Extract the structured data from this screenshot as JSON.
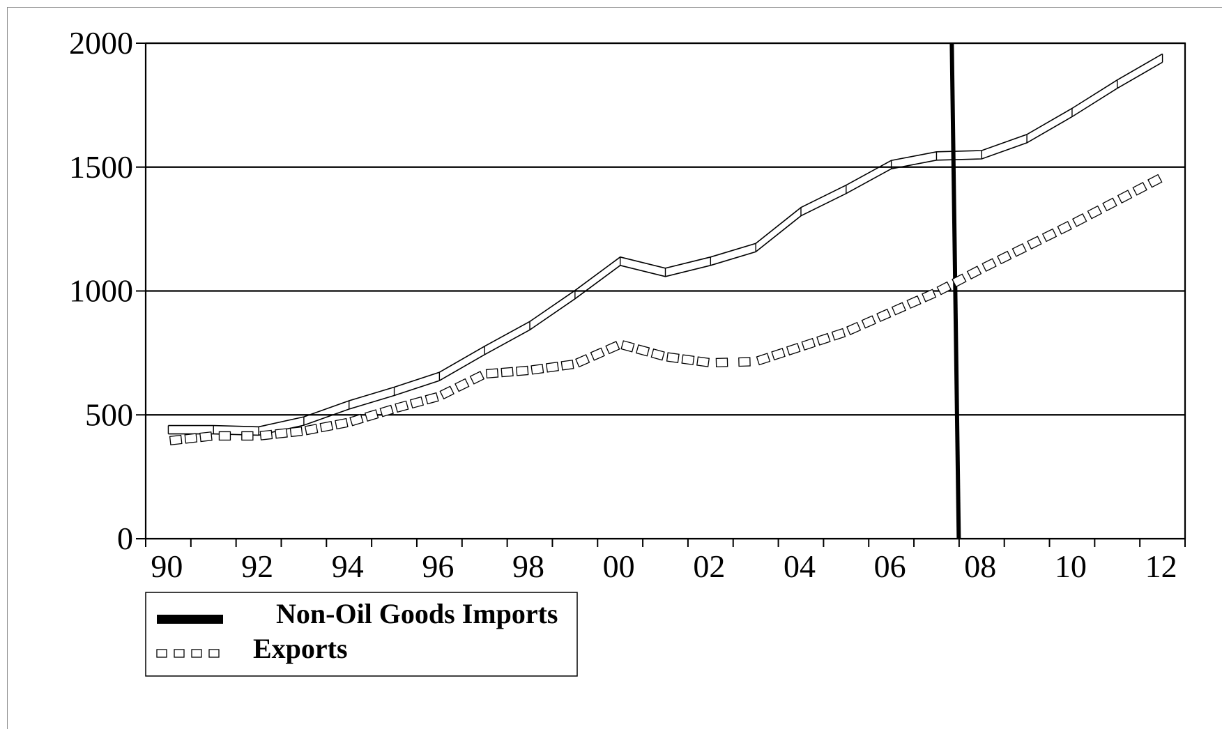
{
  "chart_data": {
    "type": "line",
    "title": "",
    "xlabel": "",
    "ylabel": "",
    "x_tick_labels": [
      "90",
      "92",
      "94",
      "96",
      "98",
      "00",
      "02",
      "04",
      "06",
      "08",
      "10",
      "12"
    ],
    "y_tick_labels": [
      "0",
      "500",
      "1000",
      "1500",
      "2000"
    ],
    "xlim": [
      1990,
      2013
    ],
    "ylim": [
      0,
      2000
    ],
    "grid": "horizontal",
    "x": [
      1990.5,
      1991.5,
      1992.5,
      1993.5,
      1994.5,
      1995.5,
      1996.5,
      1997.5,
      1998.5,
      1999.5,
      2000.5,
      2001.5,
      2002.5,
      2003.5,
      2004.5,
      2005.5,
      2006.5,
      2007.5,
      2008.5,
      2009.5,
      2010.5,
      2011.5,
      2012.5
    ],
    "series": [
      {
        "name": "Non-Oil Goods Imports",
        "values": [
          440,
          440,
          435,
          475,
          540,
          595,
          655,
          760,
          860,
          985,
          1120,
          1075,
          1120,
          1175,
          1320,
          1410,
          1510,
          1545,
          1550,
          1615,
          1720,
          1835,
          1940
        ]
      },
      {
        "name": "Exports",
        "values": [
          395,
          415,
          415,
          435,
          470,
          525,
          575,
          665,
          680,
          705,
          785,
          735,
          710,
          715,
          775,
          835,
          915,
          995,
          1090,
          1180,
          1270,
          1365,
          1460
        ]
      }
    ],
    "reference_line": {
      "x": 2007.9
    },
    "legend_position": "bottom-left"
  },
  "legend": {
    "items": [
      {
        "label": "Non-Oil Goods Imports"
      },
      {
        "label": "Exports"
      }
    ]
  }
}
